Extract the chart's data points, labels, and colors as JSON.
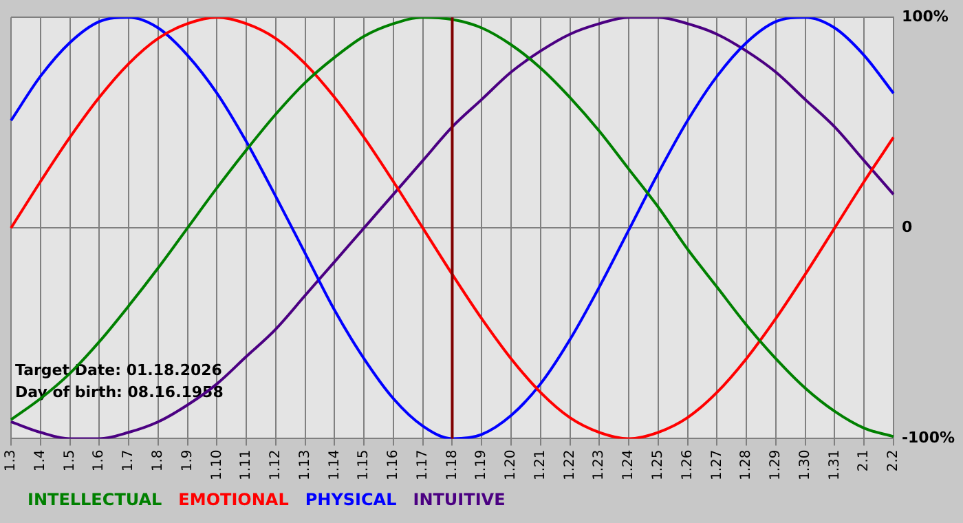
{
  "chart_data": {
    "type": "line",
    "categories": [
      "1.3",
      "1.4",
      "1.5",
      "1.6",
      "1.7",
      "1.8",
      "1.9",
      "1.10",
      "1.11",
      "1.12",
      "1.13",
      "1.14",
      "1.15",
      "1.16",
      "1.17",
      "1.18",
      "1.19",
      "1.20",
      "1.21",
      "1.22",
      "1.23",
      "1.24",
      "1.25",
      "1.26",
      "1.27",
      "1.28",
      "1.29",
      "1.30",
      "1.31",
      "2.1",
      "2.2"
    ],
    "series": [
      {
        "name": "INTELLECTUAL",
        "color": "#008000",
        "values": [
          -91,
          -81,
          -69,
          -54,
          -37,
          -19,
          0,
          19,
          37,
          54,
          69,
          81,
          91,
          97,
          100,
          99,
          95,
          87,
          76,
          62,
          46,
          28,
          10,
          -10,
          -28,
          -46,
          -62,
          -76,
          -87,
          -95,
          -99
        ]
      },
      {
        "name": "EMOTIONAL",
        "color": "#ff0000",
        "values": [
          0,
          22,
          43,
          62,
          78,
          90,
          97,
          100,
          97,
          90,
          78,
          62,
          43,
          22,
          0,
          -22,
          -43,
          -62,
          -78,
          -90,
          -97,
          -100,
          -97,
          -90,
          -78,
          -62,
          -43,
          -22,
          0,
          22,
          43
        ]
      },
      {
        "name": "PHYSICAL",
        "color": "#0000ff",
        "values": [
          51,
          72,
          88,
          98,
          100,
          95,
          82,
          64,
          41,
          15,
          -12,
          -39,
          -62,
          -81,
          -94,
          -100,
          -98,
          -89,
          -74,
          -53,
          -28,
          -1,
          26,
          51,
          72,
          88,
          98,
          100,
          95,
          82,
          64
        ]
      },
      {
        "name": "INTUITIVE",
        "color": "#4b0082",
        "values": [
          -92,
          -97,
          -100,
          -100,
          -97,
          -92,
          -84,
          -74,
          -61,
          -48,
          -32,
          -16,
          0,
          16,
          32,
          48,
          61,
          74,
          84,
          92,
          97,
          100,
          100,
          97,
          92,
          84,
          74,
          61,
          48,
          32,
          16
        ]
      }
    ],
    "ylim": [
      -100,
      100
    ],
    "yticks": [
      {
        "value": -100,
        "label": "-100%"
      },
      0,
      {
        "value": 100,
        "label": "100%"
      }
    ],
    "grid": true,
    "legend": "bottom left",
    "marker": "none",
    "line_style": "solid",
    "ref_lines": [
      {
        "axis": "x",
        "value": "1.18",
        "color": "#800000"
      }
    ],
    "annotations": [
      "Target Date: 01.18.2026",
      "Day of birth: 08.16.1958"
    ]
  }
}
